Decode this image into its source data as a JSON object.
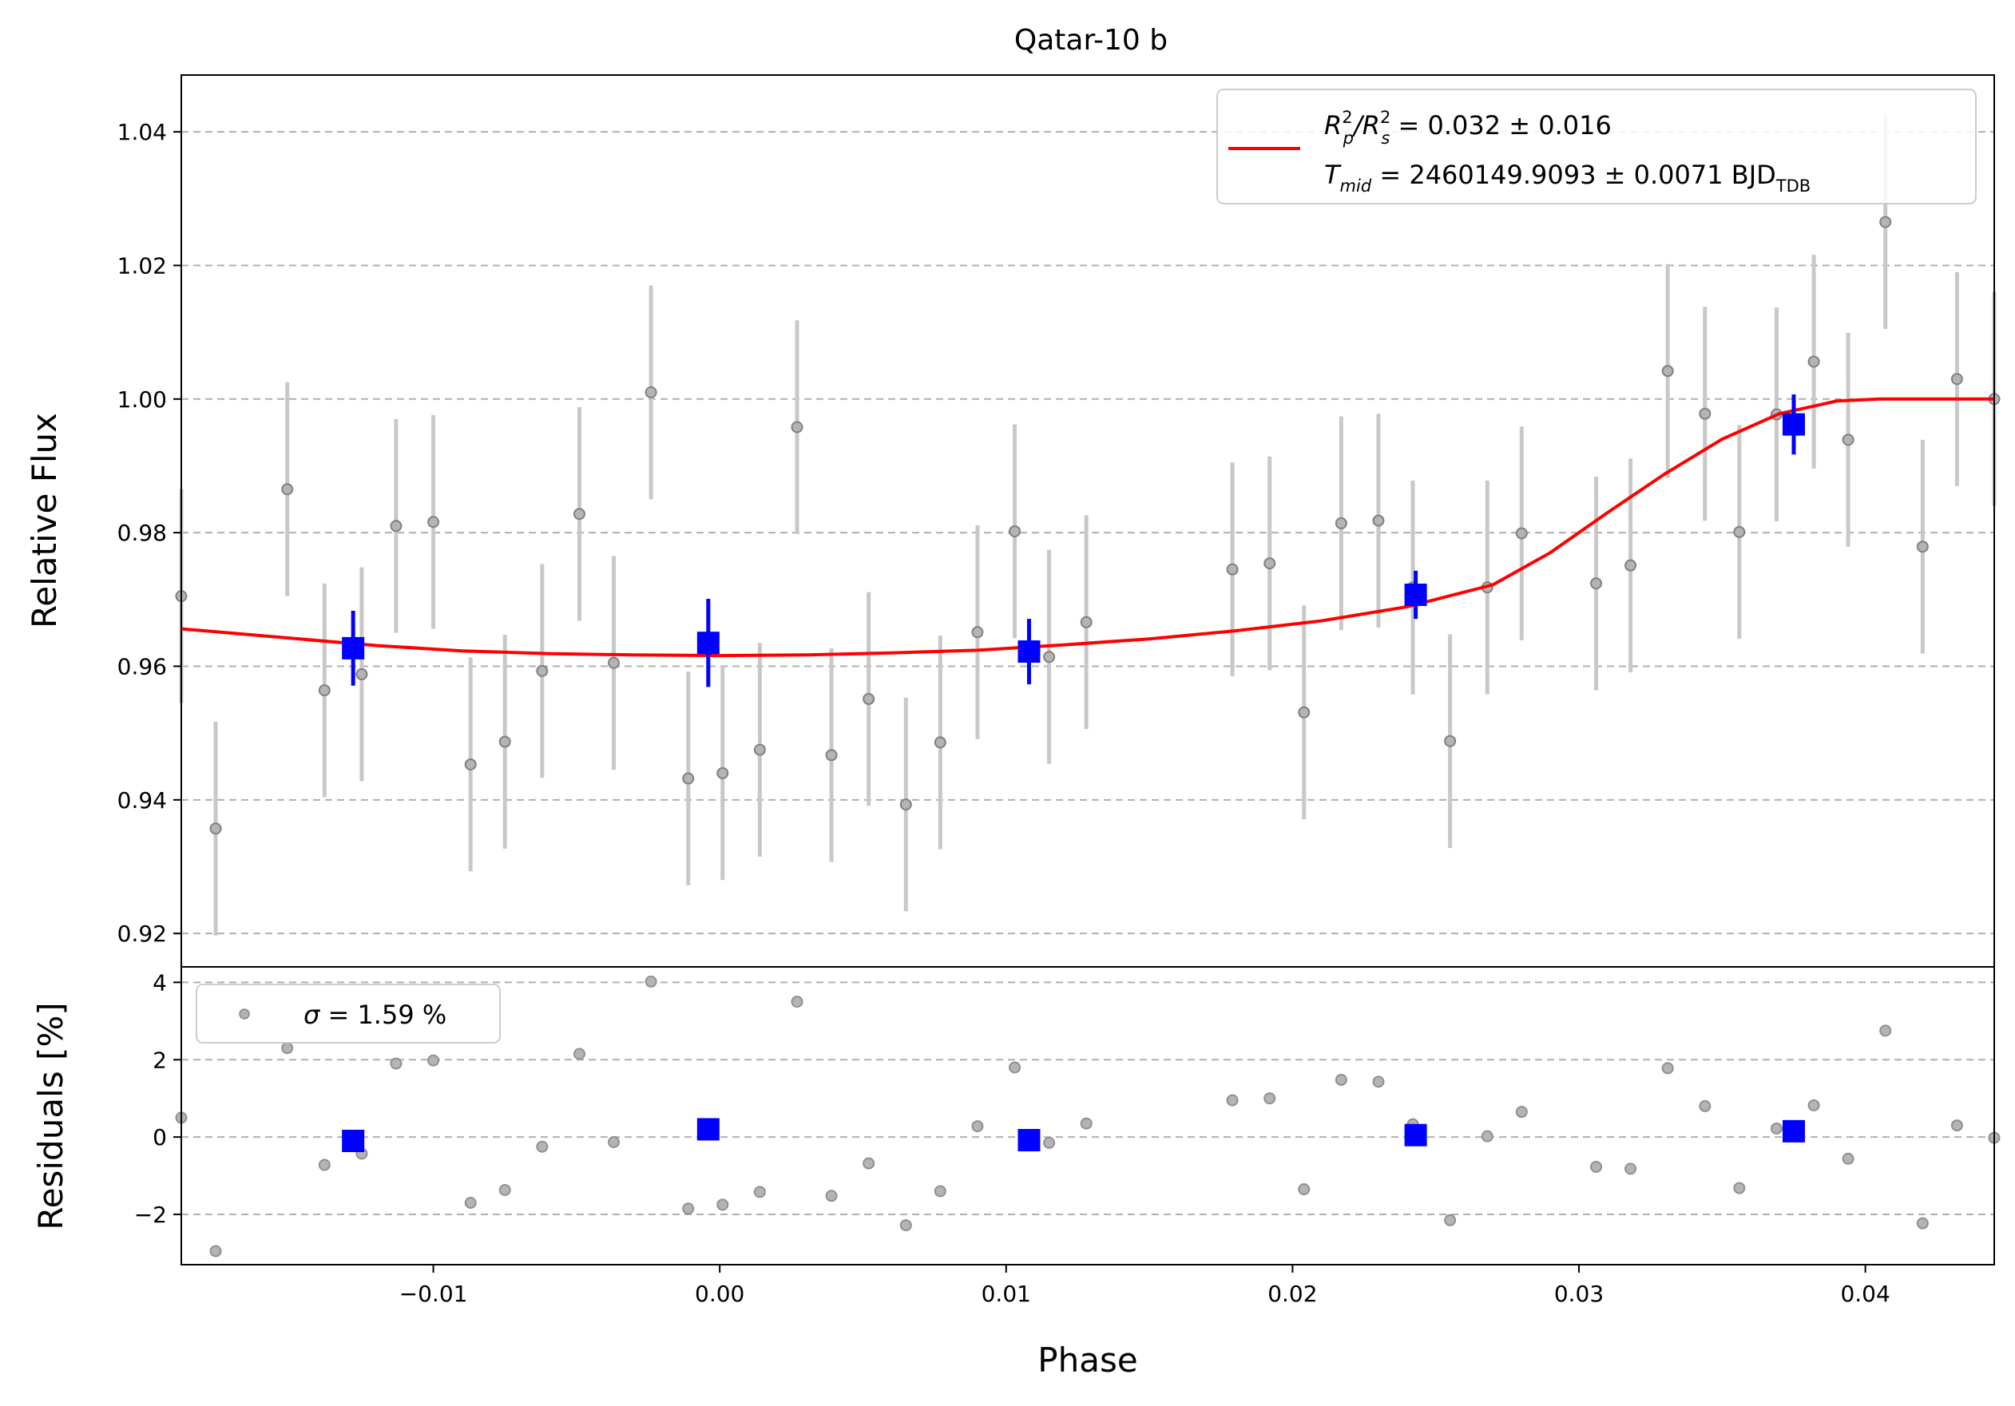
{
  "chart_data": {
    "type": "scatter",
    "title": "Qatar-10 b",
    "xlabel": "Phase",
    "top_panel": {
      "ylabel": "Relative Flux",
      "ylim": [
        0.915,
        1.0485
      ],
      "xlim": [
        -0.0188,
        0.0445
      ],
      "yticks": [
        0.92,
        0.94,
        0.96,
        0.98,
        1.0,
        1.02,
        1.04
      ],
      "ytick_labels": [
        "0.92",
        "0.94",
        "0.96",
        "0.98",
        "1.00",
        "1.02",
        "1.04"
      ],
      "grid": true,
      "legend": {
        "placement": "top-right",
        "line1_main": "R",
        "line1_sup1": "2",
        "line1_sub1": "p",
        "line1_slash": "/R",
        "line1_sup2": "2",
        "line1_sub2": "s",
        "line1_value": " = 0.032 ± 0.016",
        "line2_main": "T",
        "line2_sub": "mid",
        "line2_value": " = 2460149.9093 ± 0.0071 BJD",
        "line2_unit_sub": "TDB"
      },
      "series": [
        {
          "kind": "raw",
          "color": "#808080",
          "errcolor": "#c8c8c8",
          "x": [
            -0.0188,
            -0.0176,
            -0.0151,
            -0.0138,
            -0.0125,
            -0.0113,
            -0.01,
            -0.0087,
            -0.0075,
            -0.0062,
            -0.0049,
            -0.0037,
            -0.0024,
            -0.0011,
            0.0001,
            0.0014,
            0.0027,
            0.0039,
            0.0052,
            0.0065,
            0.0077,
            0.009,
            0.0103,
            0.0115,
            0.0128,
            0.0179,
            0.0192,
            0.0204,
            0.0217,
            0.023,
            0.0242,
            0.0255,
            0.0268,
            0.028,
            0.0306,
            0.0318,
            0.0331,
            0.0344,
            0.0356,
            0.0369,
            0.0382,
            0.0394,
            0.0407,
            0.042,
            0.0432,
            0.0445
          ],
          "y": [
            0.9705,
            0.9357,
            0.9865,
            0.9564,
            0.9588,
            0.981,
            0.9816,
            0.9453,
            0.9487,
            0.9593,
            0.9828,
            0.9605,
            1.001,
            0.9432,
            0.944,
            0.9475,
            0.9958,
            0.9467,
            0.9551,
            0.9393,
            0.9486,
            0.9651,
            0.9802,
            0.9614,
            0.9666,
            0.9745,
            0.9754,
            0.9531,
            0.9814,
            0.9818,
            0.9718,
            0.9488,
            0.9718,
            0.9799,
            0.9724,
            0.9751,
            1.0042,
            0.9978,
            0.9801,
            0.9977,
            1.0056,
            0.9939,
            1.0265,
            0.9779,
            1.003,
            1.0
          ],
          "yerr": 0.016
        },
        {
          "kind": "binned",
          "color": "#0000ff",
          "x": [
            -0.0128,
            -0.0004,
            0.0108,
            0.0243,
            0.0375
          ],
          "y": [
            0.9627,
            0.9635,
            0.9622,
            0.9707,
            0.9962
          ],
          "yerr": [
            0.0056,
            0.0066,
            0.0049,
            0.0036,
            0.0045
          ]
        },
        {
          "kind": "model",
          "color": "#ff0000",
          "x": [
            -0.0188,
            -0.015,
            -0.012,
            -0.009,
            -0.006,
            -0.003,
            0.0,
            0.003,
            0.006,
            0.009,
            0.012,
            0.015,
            0.018,
            0.021,
            0.024,
            0.027,
            0.029,
            0.031,
            0.033,
            0.035,
            0.037,
            0.039,
            0.0405,
            0.0445
          ],
          "y": [
            0.9656,
            0.9642,
            0.9631,
            0.9623,
            0.9619,
            0.9617,
            0.9616,
            0.9617,
            0.962,
            0.9624,
            0.9632,
            0.9641,
            0.9653,
            0.9668,
            0.9689,
            0.9722,
            0.977,
            0.983,
            0.9888,
            0.994,
            0.9978,
            0.9997,
            1.0,
            1.0
          ]
        }
      ]
    },
    "bottom_panel": {
      "ylabel": "Residuals [%]",
      "ylim": [
        -3.3,
        4.4
      ],
      "xlim": [
        -0.0188,
        0.0445
      ],
      "yticks": [
        -2,
        0,
        2,
        4
      ],
      "ytick_labels": [
        "−2",
        "0",
        "2",
        "4"
      ],
      "xticks": [
        -0.01,
        0.0,
        0.01,
        0.02,
        0.03,
        0.04
      ],
      "xtick_labels": [
        "−0.01",
        "0.00",
        "0.01",
        "0.02",
        "0.03",
        "0.04"
      ],
      "grid": true,
      "legend": {
        "placement": "top-left",
        "sigma_symbol": "σ",
        "sigma_value": " = 1.59 %"
      },
      "series": [
        {
          "kind": "raw",
          "color": "#909090",
          "x": [
            -0.0188,
            -0.0176,
            -0.0151,
            -0.0138,
            -0.0125,
            -0.0113,
            -0.01,
            -0.0087,
            -0.0075,
            -0.0062,
            -0.0049,
            -0.0037,
            -0.0024,
            -0.0011,
            0.0001,
            0.0014,
            0.0027,
            0.0039,
            0.0052,
            0.0065,
            0.0077,
            0.009,
            0.0103,
            0.0115,
            0.0128,
            0.0179,
            0.0192,
            0.0204,
            0.0217,
            0.023,
            0.0242,
            0.0255,
            0.0268,
            0.028,
            0.0306,
            0.0318,
            0.0331,
            0.0344,
            0.0356,
            0.0369,
            0.0382,
            0.0394,
            0.0407,
            0.042,
            0.0432,
            0.0445
          ],
          "y": [
            0.5,
            -2.95,
            2.3,
            -0.72,
            -0.43,
            1.9,
            1.98,
            -1.7,
            -1.37,
            -0.25,
            2.15,
            -0.13,
            4.02,
            -1.85,
            -1.75,
            -1.42,
            3.5,
            -1.52,
            -0.68,
            -2.28,
            -1.4,
            0.28,
            1.8,
            -0.15,
            0.35,
            0.95,
            1.0,
            -1.35,
            1.48,
            1.43,
            0.33,
            -2.15,
            0.02,
            0.65,
            -0.77,
            -0.82,
            1.78,
            0.8,
            -1.32,
            0.22,
            0.82,
            -0.56,
            2.75,
            -2.23,
            0.3,
            -0.02
          ]
        },
        {
          "kind": "binned",
          "color": "#0000ff",
          "x": [
            -0.0128,
            -0.0004,
            0.0108,
            0.0243,
            0.0375
          ],
          "y": [
            -0.1,
            0.2,
            -0.08,
            0.05,
            0.15
          ]
        }
      ]
    }
  }
}
